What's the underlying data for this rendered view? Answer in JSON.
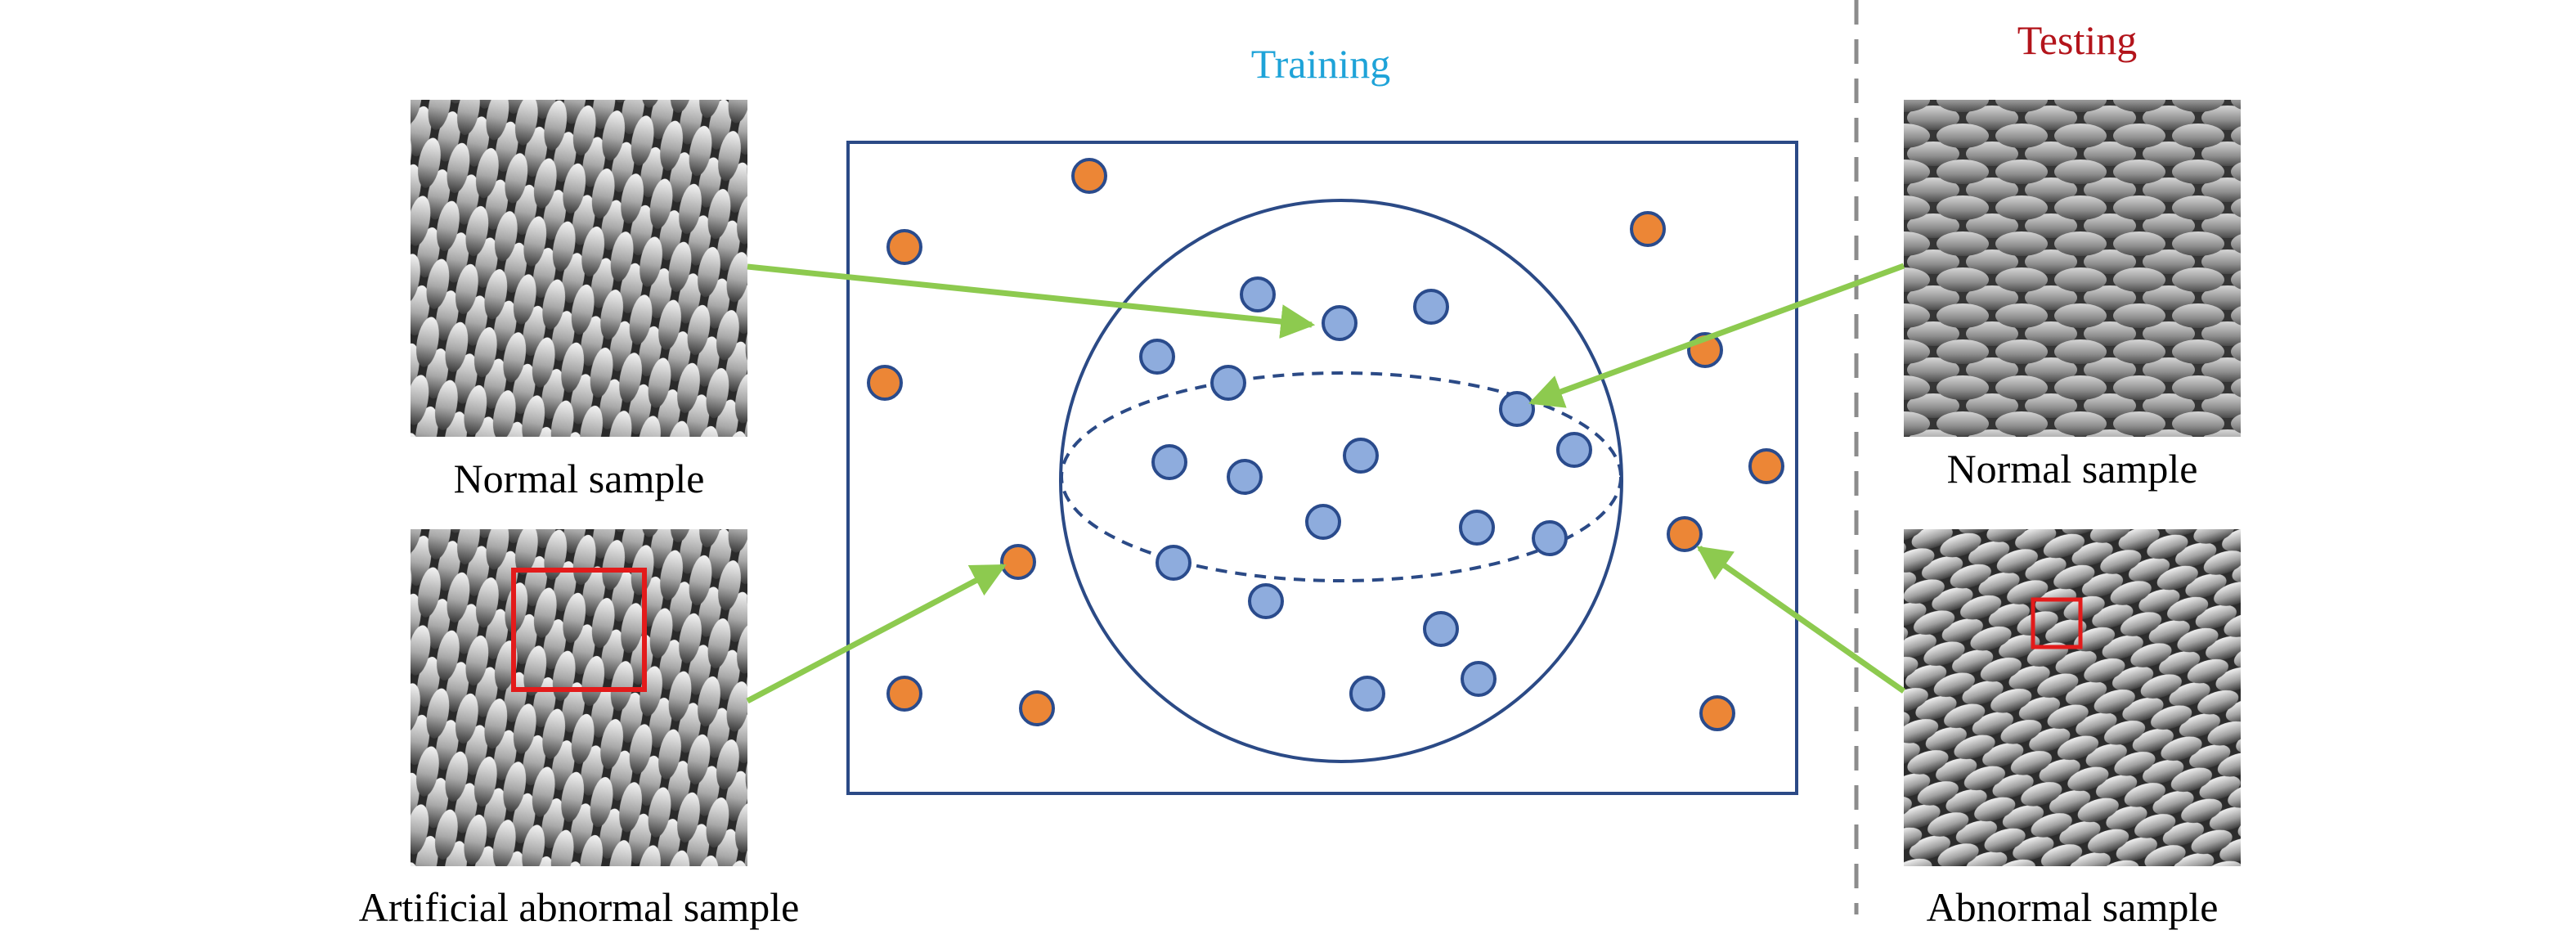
{
  "colors": {
    "training_title": "#1ea3d8",
    "testing_title": "#b3141b",
    "frame": "#2b4a86",
    "arrow": "#8dca4f",
    "normal_point": "#8eacdd",
    "abnormal_point": "#ec8636",
    "point_outline": "#2a4b8c",
    "defect_box": "#e31b1b",
    "divider": "#8c8c8c"
  },
  "training": {
    "title": "Training"
  },
  "testing": {
    "title": "Testing"
  },
  "samples": {
    "train_normal": {
      "caption": "Normal sample",
      "texture_icon": "mesh-texture"
    },
    "train_abnormal": {
      "caption": "Artificial abnormal sample",
      "texture_icon": "mesh-texture"
    },
    "test_normal": {
      "caption": "Normal sample",
      "texture_icon": "mesh-texture"
    },
    "test_abnormal": {
      "caption": "Abnormal sample",
      "texture_icon": "mesh-texture"
    }
  }
}
